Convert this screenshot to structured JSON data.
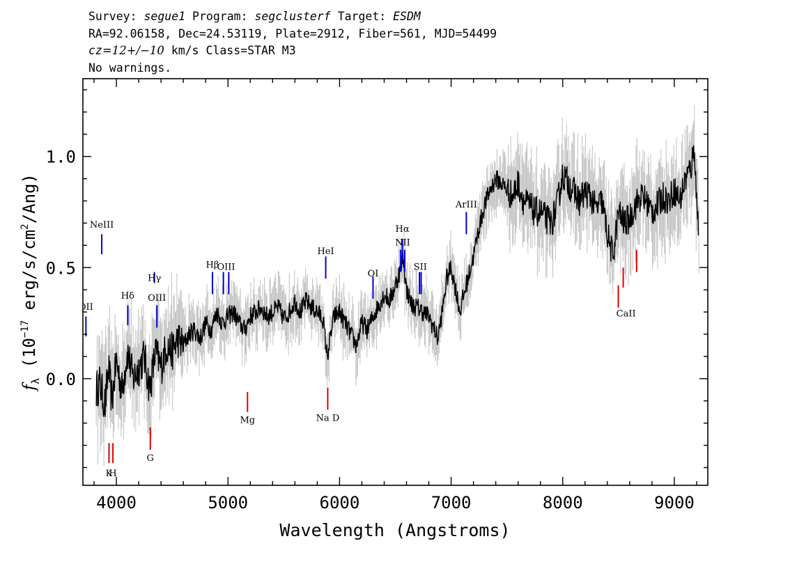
{
  "header": {
    "survey_label": "Survey: ",
    "survey": "segue1",
    "program_label": " Program: ",
    "program": "segclusterf",
    "target_label": " Target: ",
    "target": "ESDM",
    "line2": "RA=92.06158, Dec=24.53119, Plate=2912, Fiber=561, MJD=54499",
    "cz_label": "cz",
    "cz_value": "=12+/−10",
    "cz_rest": " km/s Class=STAR M3",
    "line4": "No warnings."
  },
  "chart_data": {
    "type": "line",
    "xlabel": "Wavelength (Angstroms)",
    "ylabel_prefix": "f",
    "ylabel_sub": "λ",
    "ylabel_main": " (10",
    "ylabel_exp": "−17",
    "ylabel_unit": " erg/s/cm",
    "ylabel_exp2": "2",
    "ylabel_end": "/Ang)",
    "xlim": [
      3700,
      9300
    ],
    "ylim": [
      -0.48,
      1.35
    ],
    "x_ticks": [
      "4000",
      "5000",
      "6000",
      "7000",
      "8000",
      "9000"
    ],
    "y_ticks": [
      "0.0",
      "0.5",
      "1.0"
    ],
    "grid": false,
    "series": [
      {
        "color": "#000000",
        "x": [
          3820,
          3850,
          3880,
          3900,
          3930,
          3960,
          4000,
          4050,
          4100,
          4150,
          4200,
          4250,
          4300,
          4350,
          4400,
          4450,
          4500,
          4550,
          4600,
          4650,
          4700,
          4750,
          4800,
          4850,
          4900,
          4950,
          5000,
          5050,
          5100,
          5150,
          5200,
          5250,
          5300,
          5350,
          5400,
          5450,
          5500,
          5550,
          5600,
          5650,
          5700,
          5750,
          5800,
          5850,
          5890,
          5950,
          6000,
          6050,
          6100,
          6150,
          6200,
          6250,
          6300,
          6350,
          6400,
          6450,
          6500,
          6550,
          6570,
          6600,
          6650,
          6700,
          6750,
          6800,
          6850,
          6880,
          6920,
          6960,
          7000,
          7050,
          7080,
          7100,
          7150,
          7200,
          7250,
          7300,
          7350,
          7400,
          7450,
          7500,
          7550,
          7600,
          7650,
          7700,
          7750,
          7800,
          7850,
          7900,
          7950,
          8000,
          8050,
          8100,
          8150,
          8200,
          8250,
          8300,
          8350,
          8400,
          8450,
          8500,
          8550,
          8600,
          8650,
          8700,
          8750,
          8800,
          8850,
          8900,
          8950,
          9000,
          9050,
          9100,
          9150,
          9180,
          9200,
          9220
        ],
        "y": [
          -0.05,
          -0.02,
          -0.08,
          -0.12,
          0.05,
          -0.1,
          0.08,
          -0.05,
          0.12,
          0.0,
          0.05,
          0.1,
          -0.05,
          0.12,
          0.05,
          0.15,
          0.12,
          0.18,
          0.15,
          0.2,
          0.22,
          0.18,
          0.25,
          0.22,
          0.3,
          0.25,
          0.28,
          0.3,
          0.25,
          0.22,
          0.28,
          0.3,
          0.32,
          0.28,
          0.3,
          0.32,
          0.27,
          0.3,
          0.35,
          0.3,
          0.35,
          0.32,
          0.3,
          0.27,
          0.1,
          0.28,
          0.3,
          0.25,
          0.2,
          0.15,
          0.25,
          0.22,
          0.28,
          0.33,
          0.38,
          0.35,
          0.42,
          0.5,
          0.55,
          0.4,
          0.33,
          0.32,
          0.3,
          0.28,
          0.22,
          0.18,
          0.3,
          0.45,
          0.5,
          0.38,
          0.3,
          0.35,
          0.45,
          0.55,
          0.68,
          0.78,
          0.85,
          0.9,
          0.88,
          0.85,
          0.82,
          0.88,
          0.8,
          0.78,
          0.75,
          0.75,
          0.72,
          0.7,
          0.78,
          0.92,
          0.88,
          0.84,
          0.8,
          0.84,
          0.82,
          0.76,
          0.8,
          0.65,
          0.55,
          0.75,
          0.7,
          0.72,
          0.78,
          0.82,
          0.8,
          0.75,
          0.78,
          0.82,
          0.8,
          0.85,
          0.8,
          0.9,
          0.95,
          1.05,
          0.8,
          0.65
        ]
      }
    ],
    "annotations": {
      "emission": [
        {
          "label": "NeIII",
          "x": 3869,
          "y0": 0.56,
          "y1": 0.65,
          "ly": 0.68
        },
        {
          "label": "OII",
          "x": 3727,
          "y0": 0.19,
          "y1": 0.28,
          "ly": 0.31
        },
        {
          "label": "Hδ",
          "x": 4102,
          "y0": 0.24,
          "y1": 0.33,
          "ly": 0.36
        },
        {
          "label": "Hγ",
          "x": 4341,
          "y0": 0.43,
          "y1": 0.48,
          "ly": 0.44
        },
        {
          "label": "OIII",
          "x": 4363,
          "y0": 0.23,
          "y1": 0.33,
          "ly": 0.35
        },
        {
          "label": "Hβ",
          "x": 4861,
          "y0": 0.38,
          "y1": 0.48,
          "ly": 0.5
        },
        {
          "label": "OIII",
          "x": 4959,
          "y0": 0.38,
          "y1": 0.48,
          "ly": 0.49
        },
        {
          "label": "OIII",
          "x": 5007,
          "y0": 0.38,
          "y1": 0.48,
          "ly": 0.49
        },
        {
          "label": "HeI",
          "x": 5876,
          "y0": 0.45,
          "y1": 0.55,
          "ly": 0.56
        },
        {
          "label": "OI",
          "x": 6300,
          "y0": 0.36,
          "y1": 0.46,
          "ly": 0.46
        },
        {
          "label": "NII",
          "x": 6548,
          "y0": 0.48,
          "y1": 0.58,
          "ly": 0.6
        },
        {
          "label": "Hα",
          "x": 6563,
          "y0": 0.53,
          "y1": 0.63,
          "ly": 0.66
        },
        {
          "label": "NII",
          "x": 6583,
          "y0": 0.48,
          "y1": 0.58,
          "ly": 0.6
        },
        {
          "label": "SII",
          "x": 6716,
          "y0": 0.38,
          "y1": 0.48,
          "ly": 0.49
        },
        {
          "label": "SII",
          "x": 6731,
          "y0": 0.38,
          "y1": 0.48,
          "ly": 0.49
        },
        {
          "label": "ArIII",
          "x": 7136,
          "y0": 0.65,
          "y1": 0.75,
          "ly": 0.77
        }
      ],
      "absorption": [
        {
          "label": "K",
          "x": 3934,
          "y0": -0.38,
          "y1": -0.29,
          "ly": -0.44
        },
        {
          "label": "H",
          "x": 3969,
          "y0": -0.38,
          "y1": -0.29,
          "ly": -0.44
        },
        {
          "label": "G",
          "x": 4304,
          "y0": -0.32,
          "y1": -0.22,
          "ly": -0.37
        },
        {
          "label": "Mg",
          "x": 5175,
          "y0": -0.15,
          "y1": -0.06,
          "ly": -0.2
        },
        {
          "label": "Na D",
          "x": 5894,
          "y0": -0.14,
          "y1": -0.04,
          "ly": -0.19
        },
        {
          "label": "CaII",
          "x": 8498,
          "y0": 0.32,
          "y1": 0.42,
          "ly": 0.28
        },
        {
          "label": "CaII",
          "x": 8542,
          "y0": 0.41,
          "y1": 0.5,
          "ly": 0.28
        },
        {
          "label": "CaII",
          "x": 8662,
          "y0": 0.48,
          "y1": 0.58,
          "ly": 0.28
        }
      ]
    },
    "colors": {
      "spectrum": "#000000",
      "error": "#c0c0c0",
      "emission": "#0000cc",
      "absorption": "#dd0000"
    }
  }
}
